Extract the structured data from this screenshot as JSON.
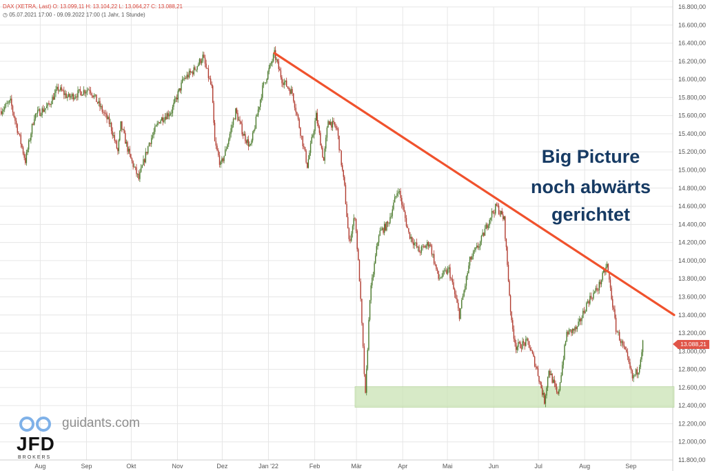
{
  "header": {
    "instrument": "DAX (XETRA, Last)",
    "ohlc": "O: 13.099,11  H: 13.104,22  L: 13.064,27  C: 13.088,21",
    "period": "05.07.2021 17:00 - 09.09.2022 17:00",
    "interval": "(1 Jahr, 1 Stunde)"
  },
  "annotation": {
    "line1": "Big Picture",
    "line2": "noch abwärts",
    "line3": "gerichtet"
  },
  "watermark": {
    "site": "guidants.com",
    "brand": "JFD",
    "brand_sub": "BROKERS"
  },
  "last_price_label": "13.088,21",
  "colors": {
    "up": "#4a7a2c",
    "down": "#b03a2e",
    "trendline": "#f0522d",
    "support_zone": "#c9e3b4",
    "annotation_text": "#163a63",
    "grid": "#e6e6e6",
    "price_tag": "#e05548"
  },
  "chart_data": {
    "type": "candlestick",
    "title": "",
    "ylim": [
      11800,
      16800
    ],
    "y_ticks": [
      "16.800,00",
      "16.600,00",
      "16.400,00",
      "16.200,00",
      "16.000,00",
      "15.800,00",
      "15.600,00",
      "15.400,00",
      "15.200,00",
      "15.000,00",
      "14.800,00",
      "14.600,00",
      "14.400,00",
      "14.200,00",
      "14.000,00",
      "13.800,00",
      "13.600,00",
      "13.400,00",
      "13.200,00",
      "13.000,00",
      "12.800,00",
      "12.600,00",
      "12.400,00",
      "12.200,00",
      "12.000,00",
      "11.800,00"
    ],
    "x_ticks": [
      {
        "label": "Aug",
        "x": "2021-08-01"
      },
      {
        "label": "Sep",
        "x": "2021-09-01"
      },
      {
        "label": "Okt",
        "x": "2021-10-01"
      },
      {
        "label": "Nov",
        "x": "2021-11-01"
      },
      {
        "label": "Dez",
        "x": "2021-12-01"
      },
      {
        "label": "Jan '22",
        "x": "2022-01-01"
      },
      {
        "label": "Feb",
        "x": "2022-02-01"
      },
      {
        "label": "Mär",
        "x": "2022-03-01"
      },
      {
        "label": "Apr",
        "x": "2022-04-01"
      },
      {
        "label": "Mai",
        "x": "2022-05-01"
      },
      {
        "label": "Jun",
        "x": "2022-06-01"
      },
      {
        "label": "Jul",
        "x": "2022-07-01"
      },
      {
        "label": "Aug",
        "x": "2022-08-01"
      },
      {
        "label": "Sep",
        "x": "2022-09-01"
      }
    ],
    "price_path": [
      [
        "2021-07-05",
        15650
      ],
      [
        "2021-07-12",
        15750
      ],
      [
        "2021-07-19",
        15300
      ],
      [
        "2021-07-22",
        15100
      ],
      [
        "2021-07-28",
        15600
      ],
      [
        "2021-08-06",
        15700
      ],
      [
        "2021-08-13",
        15900
      ],
      [
        "2021-08-20",
        15800
      ],
      [
        "2021-08-27",
        15850
      ],
      [
        "2021-09-03",
        15900
      ],
      [
        "2021-09-10",
        15700
      ],
      [
        "2021-09-17",
        15500
      ],
      [
        "2021-09-22",
        15200
      ],
      [
        "2021-09-24",
        15500
      ],
      [
        "2021-09-30",
        15150
      ],
      [
        "2021-10-06",
        14900
      ],
      [
        "2021-10-13",
        15300
      ],
      [
        "2021-10-20",
        15550
      ],
      [
        "2021-10-28",
        15650
      ],
      [
        "2021-11-05",
        16000
      ],
      [
        "2021-11-12",
        16100
      ],
      [
        "2021-11-18",
        16250
      ],
      [
        "2021-11-24",
        15900
      ],
      [
        "2021-11-26",
        15300
      ],
      [
        "2021-11-30",
        15050
      ],
      [
        "2021-12-03",
        15200
      ],
      [
        "2021-12-10",
        15650
      ],
      [
        "2021-12-15",
        15400
      ],
      [
        "2021-12-20",
        15250
      ],
      [
        "2021-12-28",
        15900
      ],
      [
        "2022-01-05",
        16280
      ],
      [
        "2022-01-10",
        16000
      ],
      [
        "2022-01-17",
        15850
      ],
      [
        "2022-01-24",
        15300
      ],
      [
        "2022-01-27",
        15050
      ],
      [
        "2022-02-02",
        15600
      ],
      [
        "2022-02-07",
        15100
      ],
      [
        "2022-02-10",
        15550
      ],
      [
        "2022-02-16",
        15450
      ],
      [
        "2022-02-21",
        14800
      ],
      [
        "2022-02-24",
        14200
      ],
      [
        "2022-02-28",
        14500
      ],
      [
        "2022-03-03",
        13800
      ],
      [
        "2022-03-07",
        12500
      ],
      [
        "2022-03-10",
        13600
      ],
      [
        "2022-03-16",
        14300
      ],
      [
        "2022-03-22",
        14400
      ],
      [
        "2022-03-29",
        14800
      ],
      [
        "2022-04-05",
        14300
      ],
      [
        "2022-04-12",
        14100
      ],
      [
        "2022-04-19",
        14200
      ],
      [
        "2022-04-25",
        13800
      ],
      [
        "2022-05-02",
        13900
      ],
      [
        "2022-05-09",
        13400
      ],
      [
        "2022-05-16",
        14000
      ],
      [
        "2022-05-23",
        14200
      ],
      [
        "2022-05-30",
        14500
      ],
      [
        "2022-06-03",
        14600
      ],
      [
        "2022-06-08",
        14450
      ],
      [
        "2022-06-13",
        13300
      ],
      [
        "2022-06-16",
        13050
      ],
      [
        "2022-06-24",
        13100
      ],
      [
        "2022-06-30",
        12800
      ],
      [
        "2022-07-05",
        12450
      ],
      [
        "2022-07-08",
        12800
      ],
      [
        "2022-07-14",
        12500
      ],
      [
        "2022-07-20",
        13200
      ],
      [
        "2022-07-27",
        13250
      ],
      [
        "2022-08-03",
        13550
      ],
      [
        "2022-08-10",
        13700
      ],
      [
        "2022-08-16",
        13950
      ],
      [
        "2022-08-22",
        13250
      ],
      [
        "2022-08-29",
        12950
      ],
      [
        "2022-09-02",
        12700
      ],
      [
        "2022-09-06",
        12800
      ],
      [
        "2022-09-09",
        13088
      ]
    ],
    "trendline": {
      "from": [
        "2022-01-05",
        16290
      ],
      "to": [
        "2022-09-30",
        13400
      ]
    },
    "support_zone": {
      "y_from": 12380,
      "y_to": 12610,
      "x_from": "2022-02-28",
      "x_to": "2022-09-30"
    },
    "last_price": 13088.21
  }
}
